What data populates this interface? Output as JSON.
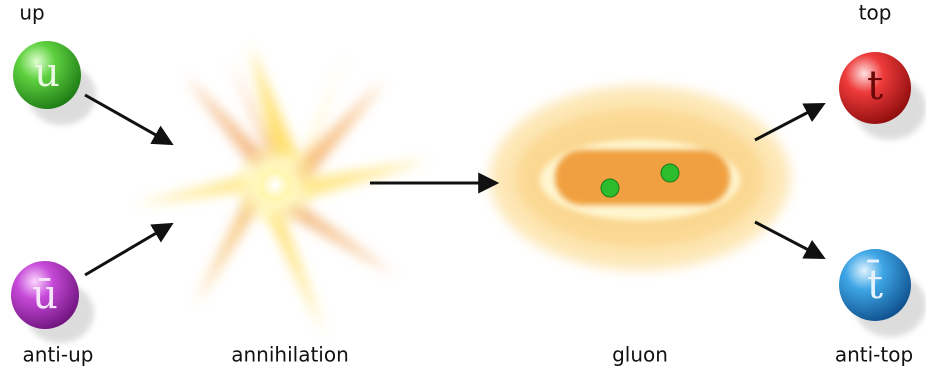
{
  "nodes": [
    {
      "label": "up",
      "symbol": "u"
    },
    {
      "label": "anti-up",
      "symbol": "ū"
    },
    {
      "label": "annihilation"
    },
    {
      "label": "gluon"
    },
    {
      "label": "top",
      "symbol": "t"
    },
    {
      "label": "anti-top",
      "symbol": "t̄"
    }
  ]
}
